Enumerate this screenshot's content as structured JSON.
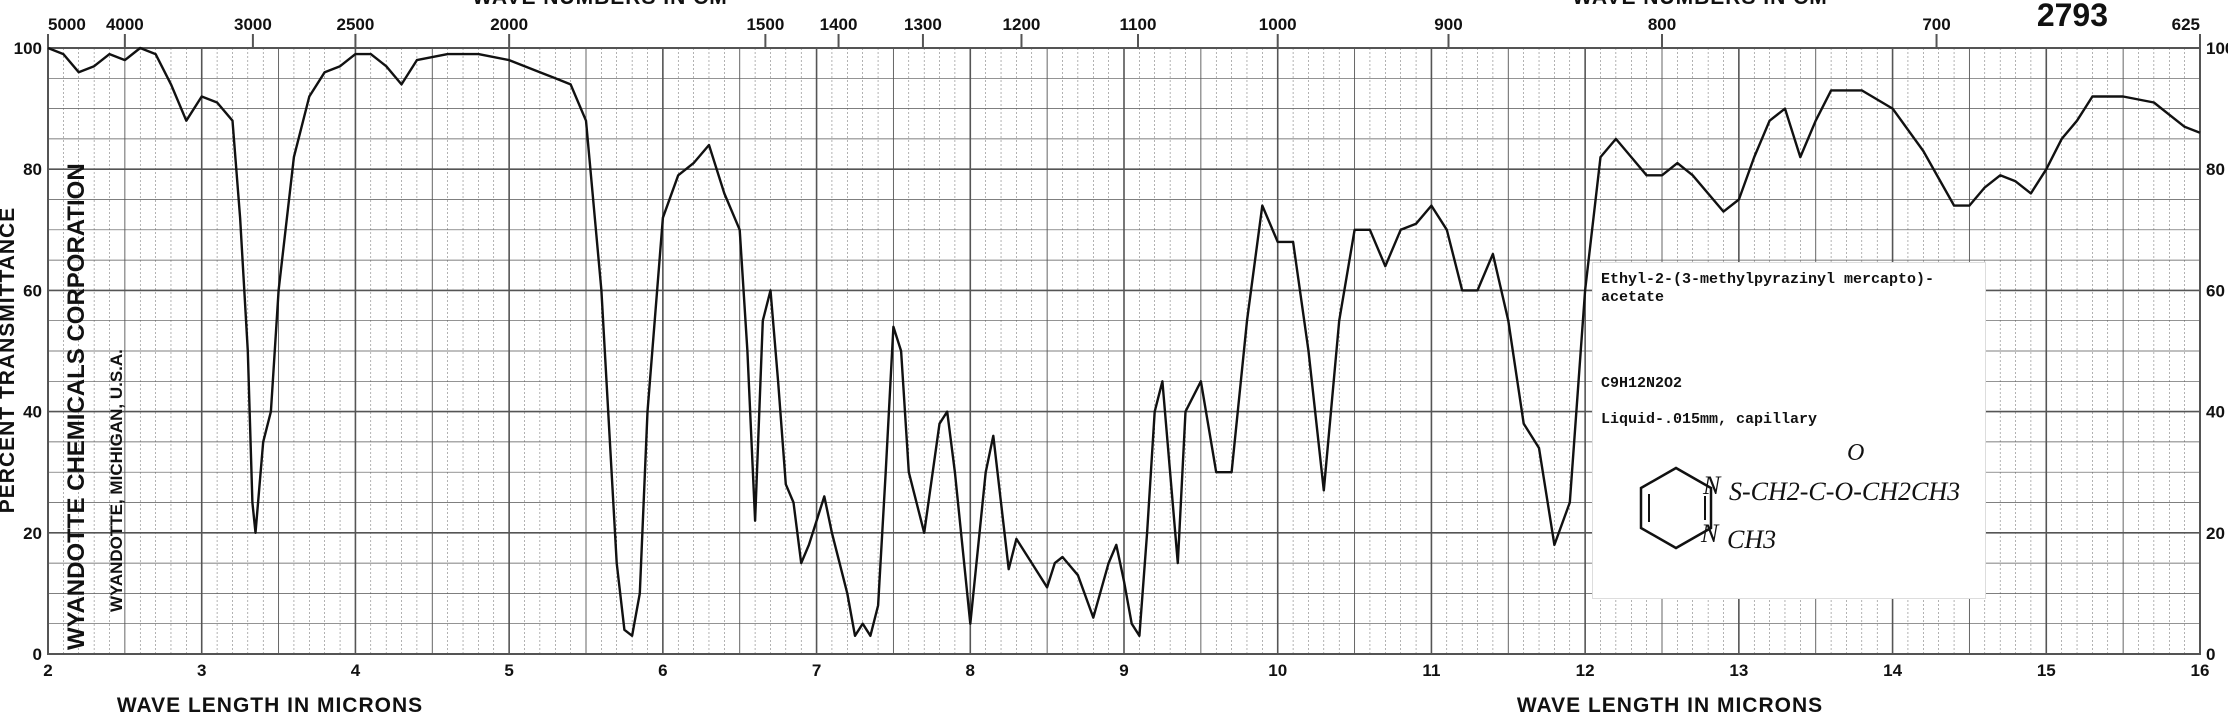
{
  "chart_data": {
    "type": "line",
    "serial": "2793",
    "xlabel": "WAVE LENGTH IN MICRONS",
    "top_xlabel": "WAVE NUMBERS IN CM",
    "ylabel": "PERCENT TRANSMITTANCE",
    "x_range": [
      2,
      16
    ],
    "ylim": [
      0,
      100
    ],
    "grid": true,
    "x_ticks": [
      "2",
      "3",
      "4",
      "5",
      "6",
      "7",
      "8",
      "9",
      "10",
      "11",
      "12",
      "13",
      "14",
      "15",
      "16"
    ],
    "y_ticks_left": [
      "0",
      "20",
      "40",
      "60",
      "80",
      "100"
    ],
    "y_ticks_right": [
      "0",
      "20",
      "40",
      "60",
      "80",
      "100"
    ],
    "top_ticks": [
      {
        "label": "5000",
        "um": 2.0
      },
      {
        "label": "4000",
        "um": 2.5
      },
      {
        "label": "3000",
        "um": 3.333
      },
      {
        "label": "2500",
        "um": 4.0
      },
      {
        "label": "2000",
        "um": 5.0
      },
      {
        "label": "1500",
        "um": 6.667
      },
      {
        "label": "1400",
        "um": 7.143
      },
      {
        "label": "1300",
        "um": 7.692
      },
      {
        "label": "1200",
        "um": 8.333
      },
      {
        "label": "1100",
        "um": 9.091
      },
      {
        "label": "1000",
        "um": 10.0
      },
      {
        "label": "900",
        "um": 11.111
      },
      {
        "label": "800",
        "um": 12.5
      },
      {
        "label": "700",
        "um": 14.286
      },
      {
        "label": "625",
        "um": 16.0
      }
    ],
    "series": [
      {
        "points": [
          [
            2.0,
            100
          ],
          [
            2.1,
            99
          ],
          [
            2.2,
            96
          ],
          [
            2.3,
            97
          ],
          [
            2.4,
            99
          ],
          [
            2.5,
            98
          ],
          [
            2.6,
            100
          ],
          [
            2.7,
            99
          ],
          [
            2.8,
            94
          ],
          [
            2.9,
            88
          ],
          [
            3.0,
            92
          ],
          [
            3.1,
            91
          ],
          [
            3.2,
            88
          ],
          [
            3.25,
            72
          ],
          [
            3.3,
            50
          ],
          [
            3.33,
            25
          ],
          [
            3.35,
            20
          ],
          [
            3.4,
            35
          ],
          [
            3.45,
            40
          ],
          [
            3.5,
            60
          ],
          [
            3.6,
            82
          ],
          [
            3.7,
            92
          ],
          [
            3.8,
            96
          ],
          [
            3.9,
            97
          ],
          [
            4.0,
            99
          ],
          [
            4.1,
            99
          ],
          [
            4.2,
            97
          ],
          [
            4.3,
            94
          ],
          [
            4.4,
            98
          ],
          [
            4.6,
            99
          ],
          [
            4.8,
            99
          ],
          [
            5.0,
            98
          ],
          [
            5.2,
            96
          ],
          [
            5.3,
            95
          ],
          [
            5.4,
            94
          ],
          [
            5.5,
            88
          ],
          [
            5.6,
            60
          ],
          [
            5.7,
            15
          ],
          [
            5.75,
            4
          ],
          [
            5.8,
            3
          ],
          [
            5.85,
            10
          ],
          [
            5.9,
            40
          ],
          [
            6.0,
            72
          ],
          [
            6.1,
            79
          ],
          [
            6.2,
            81
          ],
          [
            6.3,
            84
          ],
          [
            6.4,
            76
          ],
          [
            6.5,
            70
          ],
          [
            6.55,
            50
          ],
          [
            6.6,
            22
          ],
          [
            6.65,
            55
          ],
          [
            6.7,
            60
          ],
          [
            6.75,
            45
          ],
          [
            6.8,
            28
          ],
          [
            6.85,
            25
          ],
          [
            6.9,
            15
          ],
          [
            6.95,
            18
          ],
          [
            7.0,
            22
          ],
          [
            7.05,
            26
          ],
          [
            7.1,
            20
          ],
          [
            7.2,
            10
          ],
          [
            7.25,
            3
          ],
          [
            7.3,
            5
          ],
          [
            7.35,
            3
          ],
          [
            7.4,
            8
          ],
          [
            7.45,
            30
          ],
          [
            7.5,
            54
          ],
          [
            7.55,
            50
          ],
          [
            7.6,
            30
          ],
          [
            7.7,
            20
          ],
          [
            7.8,
            38
          ],
          [
            7.85,
            40
          ],
          [
            7.9,
            30
          ],
          [
            8.0,
            5
          ],
          [
            8.1,
            30
          ],
          [
            8.15,
            36
          ],
          [
            8.2,
            25
          ],
          [
            8.25,
            14
          ],
          [
            8.3,
            19
          ],
          [
            8.4,
            15
          ],
          [
            8.5,
            11
          ],
          [
            8.55,
            15
          ],
          [
            8.6,
            16
          ],
          [
            8.7,
            13
          ],
          [
            8.8,
            6
          ],
          [
            8.9,
            15
          ],
          [
            8.95,
            18
          ],
          [
            9.0,
            12
          ],
          [
            9.05,
            5
          ],
          [
            9.1,
            3
          ],
          [
            9.15,
            20
          ],
          [
            9.2,
            40
          ],
          [
            9.25,
            45
          ],
          [
            9.3,
            30
          ],
          [
            9.35,
            15
          ],
          [
            9.4,
            40
          ],
          [
            9.5,
            45
          ],
          [
            9.6,
            30
          ],
          [
            9.7,
            30
          ],
          [
            9.8,
            55
          ],
          [
            9.9,
            74
          ],
          [
            10.0,
            68
          ],
          [
            10.1,
            68
          ],
          [
            10.2,
            50
          ],
          [
            10.3,
            27
          ],
          [
            10.4,
            55
          ],
          [
            10.5,
            70
          ],
          [
            10.6,
            70
          ],
          [
            10.7,
            64
          ],
          [
            10.8,
            70
          ],
          [
            10.9,
            71
          ],
          [
            11.0,
            74
          ],
          [
            11.1,
            70
          ],
          [
            11.2,
            60
          ],
          [
            11.3,
            60
          ],
          [
            11.4,
            66
          ],
          [
            11.5,
            55
          ],
          [
            11.6,
            38
          ],
          [
            11.7,
            34
          ],
          [
            11.8,
            18
          ],
          [
            11.9,
            25
          ],
          [
            12.0,
            60
          ],
          [
            12.1,
            82
          ],
          [
            12.2,
            85
          ],
          [
            12.3,
            82
          ],
          [
            12.4,
            79
          ],
          [
            12.5,
            79
          ],
          [
            12.6,
            81
          ],
          [
            12.7,
            79
          ],
          [
            12.9,
            73
          ],
          [
            13.0,
            75
          ],
          [
            13.1,
            82
          ],
          [
            13.2,
            88
          ],
          [
            13.3,
            90
          ],
          [
            13.4,
            82
          ],
          [
            13.5,
            88
          ],
          [
            13.6,
            93
          ],
          [
            13.8,
            93
          ],
          [
            14.0,
            90
          ],
          [
            14.2,
            83
          ],
          [
            14.4,
            74
          ],
          [
            14.5,
            74
          ],
          [
            14.6,
            77
          ],
          [
            14.7,
            79
          ],
          [
            14.8,
            78
          ],
          [
            14.9,
            76
          ],
          [
            15.0,
            80
          ],
          [
            15.1,
            85
          ],
          [
            15.2,
            88
          ],
          [
            15.3,
            92
          ],
          [
            15.5,
            92
          ],
          [
            15.7,
            91
          ],
          [
            15.9,
            87
          ],
          [
            16.0,
            86
          ]
        ]
      }
    ],
    "sample": {
      "name_line1": "Ethyl-2-(3-methylpyrazinyl mercapto)-",
      "name_line2": "acetate",
      "formula": "C9H12N2O2",
      "conditions": "Liquid-.015mm, capillary",
      "structure_chain": "S-CH2-C-O-CH2CH3",
      "structure_carbonyl_o": "O",
      "structure_methyl": "CH3",
      "ring_n_top": "N",
      "ring_n_bottom": "N"
    },
    "vertical_text_1": "WYANDOTTE CHEMICALS CORPORATION",
    "vertical_text_2": "WYANDOTTE, MICHIGAN, U.S.A."
  },
  "colors": {
    "grid": "#555555",
    "trace": "#111111",
    "background": "#ffffff"
  }
}
